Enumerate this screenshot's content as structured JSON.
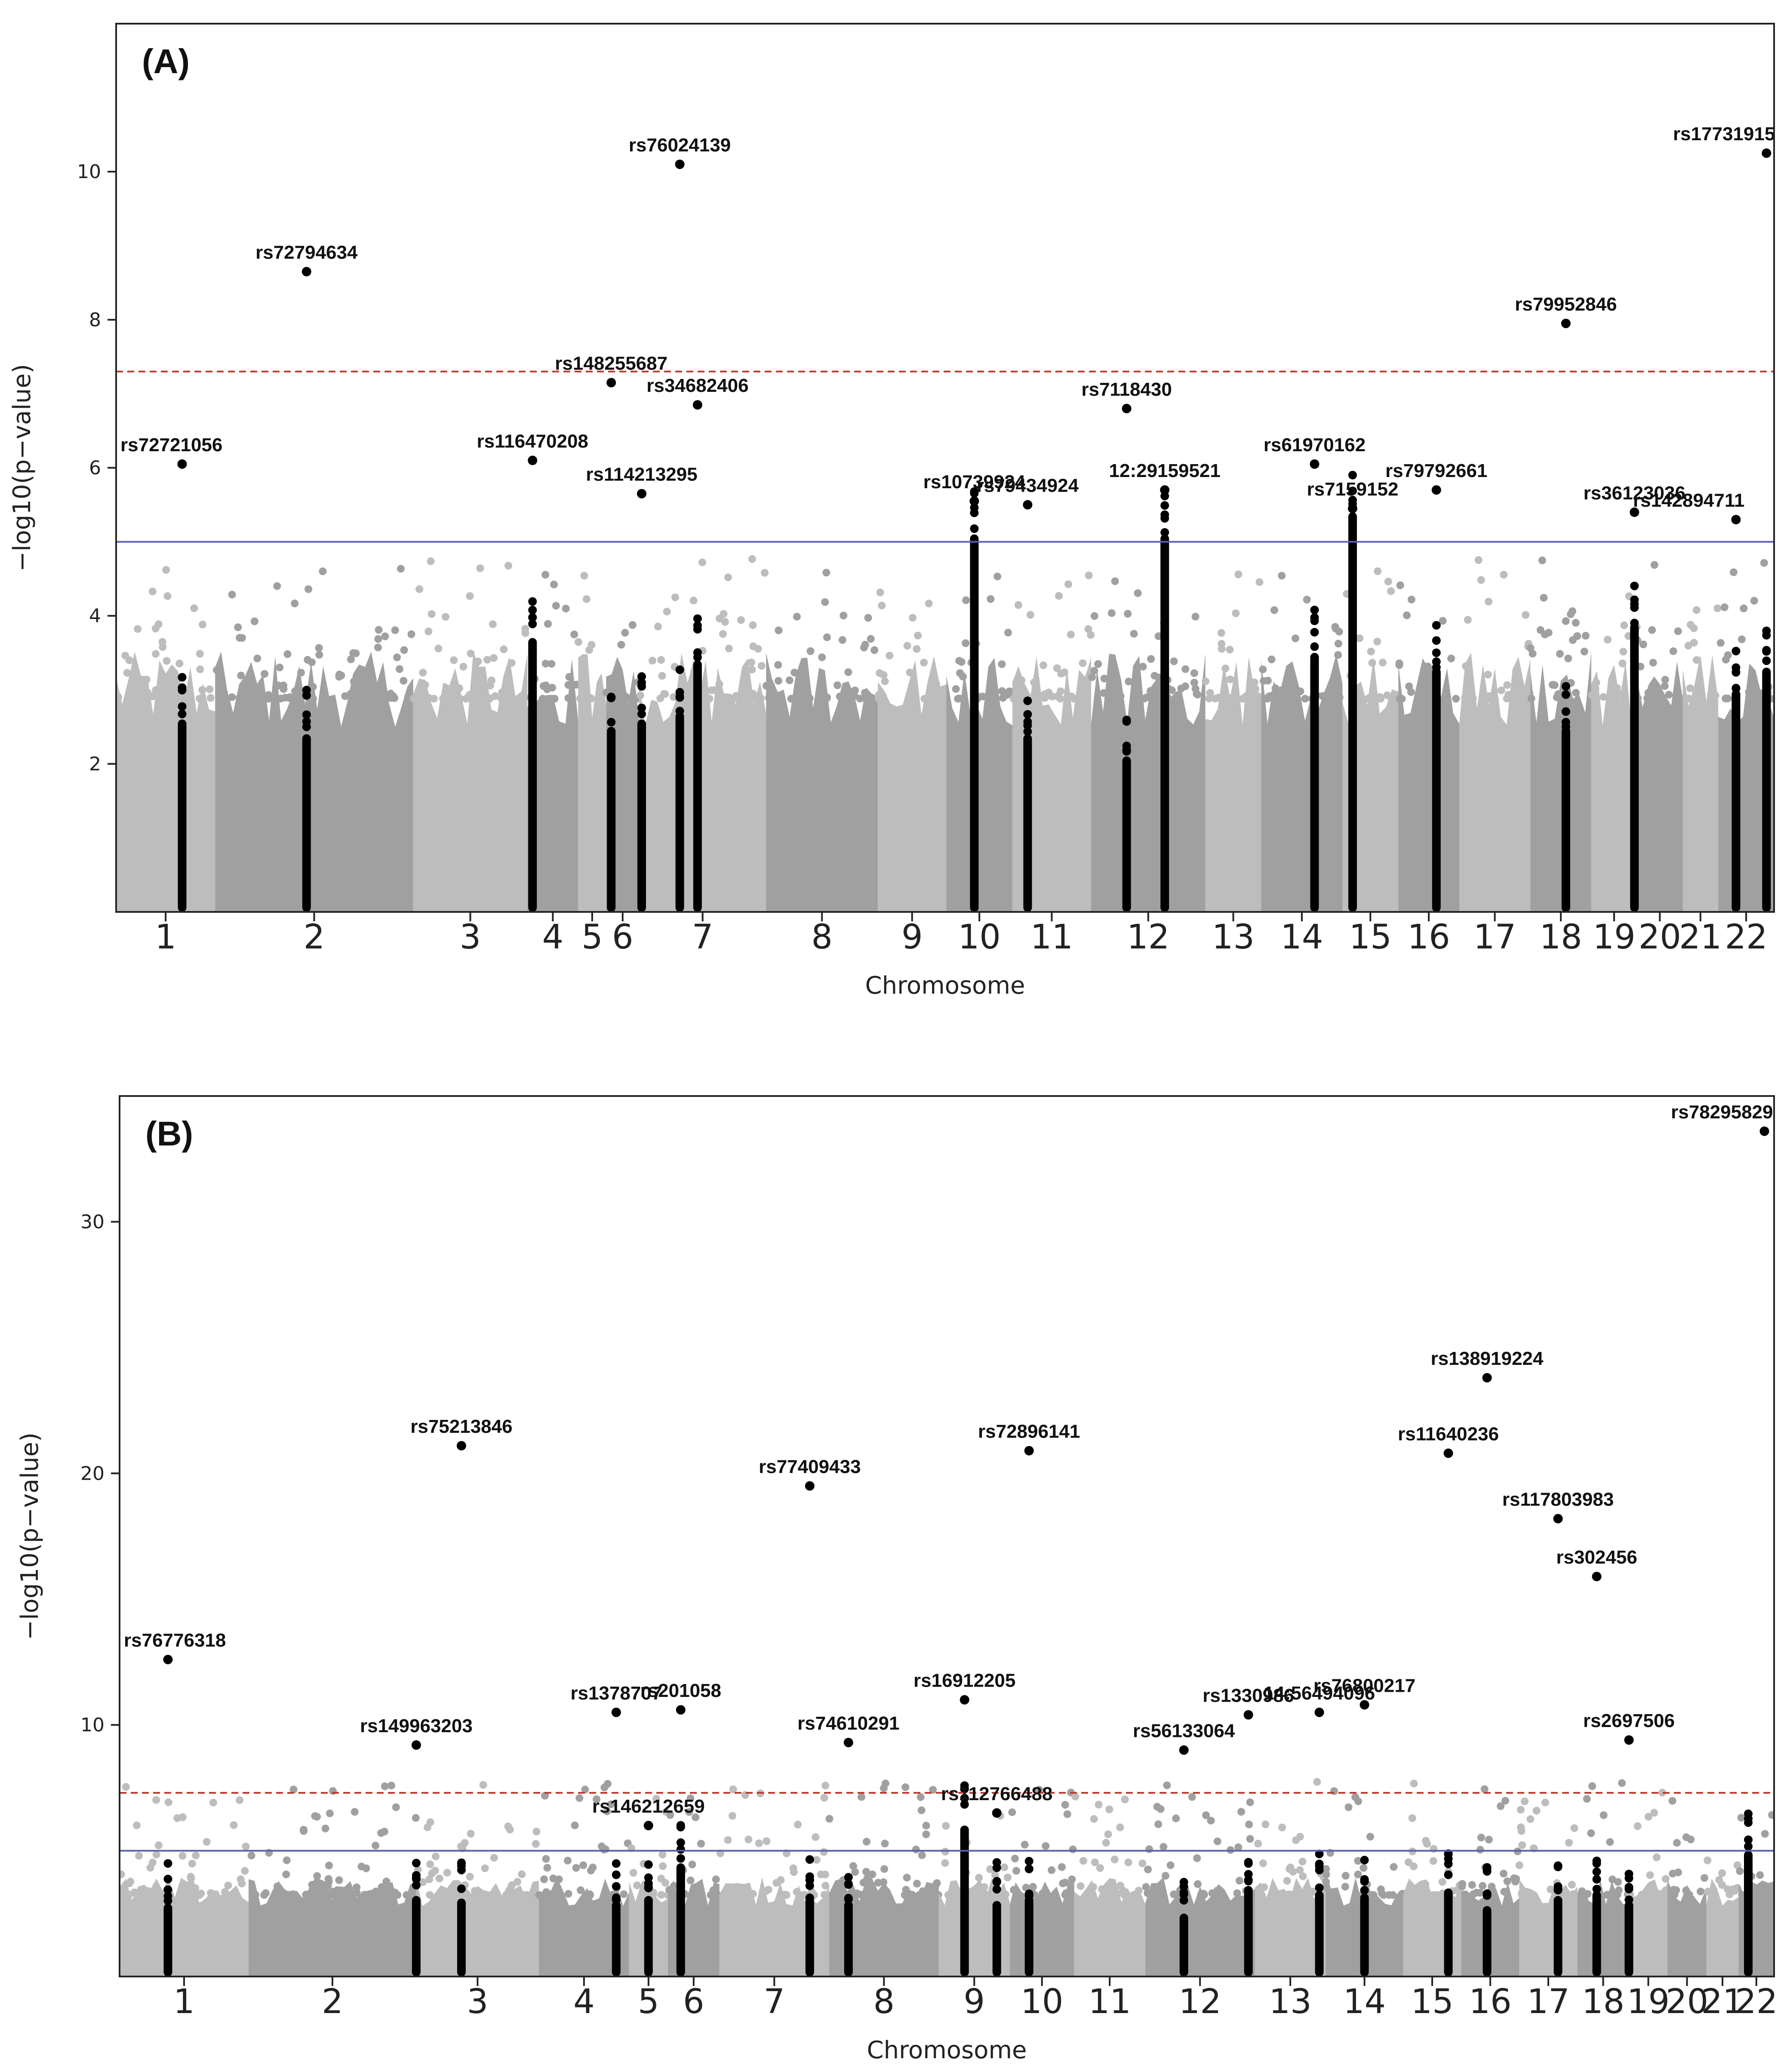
{
  "colors": {
    "light": "#bdbdbd",
    "dark": "#a0a0a0",
    "highlight": "#000000",
    "suggestive": "#5a5fb5",
    "significant": "#c0392b"
  },
  "chart_data": [
    {
      "type": "scatter",
      "title": "(A)",
      "xlabel": "Chromosome",
      "ylabel": "−log10(p−value)",
      "ylim": [
        0,
        12
      ],
      "yticks": [
        2,
        4,
        6,
        8,
        10
      ],
      "suggestive_line": 5.0,
      "genomewide_line": 7.3,
      "chromosomes": [
        {
          "label": "1",
          "start": 0.0,
          "end": 1.95
        },
        {
          "label": "2",
          "start": 1.95,
          "end": 5.85
        },
        {
          "label": "3",
          "start": 5.85,
          "end": 8.1
        },
        {
          "label": "4",
          "start": 8.1,
          "end": 9.1
        },
        {
          "label": "5",
          "start": 9.1,
          "end": 9.65
        },
        {
          "label": "6",
          "start": 9.65,
          "end": 10.3
        },
        {
          "label": "7",
          "start": 10.3,
          "end": 12.8
        },
        {
          "label": "8",
          "start": 12.8,
          "end": 15.0
        },
        {
          "label": "9",
          "start": 15.0,
          "end": 16.35
        },
        {
          "label": "10",
          "start": 16.35,
          "end": 17.65
        },
        {
          "label": "11",
          "start": 17.65,
          "end": 19.2
        },
        {
          "label": "12",
          "start": 19.2,
          "end": 21.45
        },
        {
          "label": "13",
          "start": 21.45,
          "end": 22.55
        },
        {
          "label": "14",
          "start": 22.55,
          "end": 24.15
        },
        {
          "label": "15",
          "start": 24.15,
          "end": 25.25
        },
        {
          "label": "16",
          "start": 25.25,
          "end": 26.45
        },
        {
          "label": "17",
          "start": 26.45,
          "end": 27.85
        },
        {
          "label": "18",
          "start": 27.85,
          "end": 29.05
        },
        {
          "label": "19",
          "start": 29.05,
          "end": 29.95
        },
        {
          "label": "20",
          "start": 29.95,
          "end": 30.85
        },
        {
          "label": "21",
          "start": 30.85,
          "end": 31.55
        },
        {
          "label": "22",
          "start": 31.55,
          "end": 32.65
        }
      ],
      "highlight_columns": [
        {
          "x": 1.3,
          "top": 2.6
        },
        {
          "x": 3.75,
          "top": 2.4
        },
        {
          "x": 8.2,
          "top": 3.7
        },
        {
          "x": 9.75,
          "top": 2.5
        },
        {
          "x": 10.35,
          "top": 2.6
        },
        {
          "x": 11.1,
          "top": 2.7
        },
        {
          "x": 11.45,
          "top": 3.4
        },
        {
          "x": 16.9,
          "top": 5.1
        },
        {
          "x": 17.95,
          "top": 2.4
        },
        {
          "x": 19.9,
          "top": 2.1
        },
        {
          "x": 20.65,
          "top": 5.1
        },
        {
          "x": 23.6,
          "top": 3.5
        },
        {
          "x": 24.35,
          "top": 5.4
        },
        {
          "x": 26.0,
          "top": 3.3
        },
        {
          "x": 28.55,
          "top": 2.5
        },
        {
          "x": 29.9,
          "top": 3.9
        },
        {
          "x": 31.9,
          "top": 3.0
        },
        {
          "x": 32.5,
          "top": 3.3
        }
      ],
      "annotations": [
        {
          "label": "rs72721056",
          "x": 1.3,
          "y": 6.05
        },
        {
          "label": "rs72794634",
          "x": 3.75,
          "y": 8.65
        },
        {
          "label": "rs116470208",
          "x": 8.2,
          "y": 6.1
        },
        {
          "label": "rs148255687",
          "x": 9.75,
          "y": 7.15
        },
        {
          "label": "rs114213295",
          "x": 10.35,
          "y": 5.65
        },
        {
          "label": "rs76024139",
          "x": 11.1,
          "y": 10.1
        },
        {
          "label": "rs34682406",
          "x": 11.45,
          "y": 6.85
        },
        {
          "label": "rs10739924",
          "x": 16.9,
          "y": 5.55
        },
        {
          "label": "rs79434924",
          "x": 17.95,
          "y": 5.5
        },
        {
          "label": "rs7118430",
          "x": 19.9,
          "y": 6.8
        },
        {
          "label": "12:29159521",
          "x": 20.65,
          "y": 5.7
        },
        {
          "label": "rs61970162",
          "x": 23.6,
          "y": 6.05
        },
        {
          "label": "rs7159152",
          "x": 24.35,
          "y": 5.45
        },
        {
          "label": "rs79792661",
          "x": 26.0,
          "y": 5.7
        },
        {
          "label": "rs79952846",
          "x": 28.55,
          "y": 7.95
        },
        {
          "label": "rs36123036",
          "x": 29.9,
          "y": 5.4
        },
        {
          "label": "rs142894711",
          "x": 31.9,
          "y": 5.3
        },
        {
          "label": "rs17731915",
          "x": 32.5,
          "y": 10.25
        }
      ]
    },
    {
      "type": "scatter",
      "title": "(B)",
      "xlabel": "Chromosome",
      "ylabel": "−log10(p−value)",
      "ylim": [
        0,
        35
      ],
      "yticks": [
        10,
        20,
        30
      ],
      "suggestive_line": 5.0,
      "genomewide_line": 7.3,
      "chromosomes": [
        {
          "label": "1",
          "start": 0.0,
          "end": 2.0
        },
        {
          "label": "2",
          "start": 2.0,
          "end": 4.6
        },
        {
          "label": "3",
          "start": 4.6,
          "end": 6.5
        },
        {
          "label": "4",
          "start": 6.5,
          "end": 7.9
        },
        {
          "label": "5",
          "start": 7.9,
          "end": 8.5
        },
        {
          "label": "6",
          "start": 8.5,
          "end": 9.3
        },
        {
          "label": "7",
          "start": 9.3,
          "end": 11.0
        },
        {
          "label": "8",
          "start": 11.0,
          "end": 12.7
        },
        {
          "label": "9",
          "start": 12.7,
          "end": 13.8
        },
        {
          "label": "10",
          "start": 13.8,
          "end": 14.8
        },
        {
          "label": "11",
          "start": 14.8,
          "end": 15.9
        },
        {
          "label": "12",
          "start": 15.9,
          "end": 17.6
        },
        {
          "label": "13",
          "start": 17.6,
          "end": 18.7
        },
        {
          "label": "14",
          "start": 18.7,
          "end": 19.9
        },
        {
          "label": "15",
          "start": 19.9,
          "end": 20.8
        },
        {
          "label": "16",
          "start": 20.8,
          "end": 21.7
        },
        {
          "label": "17",
          "start": 21.7,
          "end": 22.6
        },
        {
          "label": "18",
          "start": 22.6,
          "end": 23.4
        },
        {
          "label": "19",
          "start": 23.4,
          "end": 24.0
        },
        {
          "label": "20",
          "start": 24.0,
          "end": 24.6
        },
        {
          "label": "21",
          "start": 24.6,
          "end": 25.1
        },
        {
          "label": "22",
          "start": 25.1,
          "end": 25.65
        }
      ],
      "highlight_columns": [
        {
          "x": 0.75,
          "top": 2.9
        },
        {
          "x": 4.6,
          "top": 3.2
        },
        {
          "x": 5.3,
          "top": 3.1
        },
        {
          "x": 7.7,
          "top": 3.0
        },
        {
          "x": 8.2,
          "top": 3.2
        },
        {
          "x": 8.7,
          "top": 4.5
        },
        {
          "x": 10.7,
          "top": 3.3
        },
        {
          "x": 11.3,
          "top": 3.0
        },
        {
          "x": 13.1,
          "top": 6.0
        },
        {
          "x": 13.6,
          "top": 3.0
        },
        {
          "x": 14.1,
          "top": 3.2
        },
        {
          "x": 16.5,
          "top": 2.5
        },
        {
          "x": 17.5,
          "top": 3.6
        },
        {
          "x": 18.6,
          "top": 3.4
        },
        {
          "x": 19.3,
          "top": 3.3
        },
        {
          "x": 20.6,
          "top": 3.5
        },
        {
          "x": 21.2,
          "top": 2.8
        },
        {
          "x": 22.3,
          "top": 3.2
        },
        {
          "x": 22.9,
          "top": 3.4
        },
        {
          "x": 23.4,
          "top": 3.0
        },
        {
          "x": 25.25,
          "top": 5.0
        }
      ],
      "annotations": [
        {
          "label": "rs76776318",
          "x": 0.75,
          "y": 12.6
        },
        {
          "label": "rs149963203",
          "x": 4.6,
          "y": 9.2
        },
        {
          "label": "rs75213846",
          "x": 5.3,
          "y": 21.1
        },
        {
          "label": "rs1378707",
          "x": 7.7,
          "y": 10.5
        },
        {
          "label": "rs146212659",
          "x": 8.2,
          "y": 6.0
        },
        {
          "label": "rs201058",
          "x": 8.7,
          "y": 10.6
        },
        {
          "label": "rs77409433",
          "x": 10.7,
          "y": 19.5
        },
        {
          "label": "rs74610291",
          "x": 11.3,
          "y": 9.3
        },
        {
          "label": "rs16912205",
          "x": 13.1,
          "y": 11.0
        },
        {
          "label": "rs112766488",
          "x": 13.6,
          "y": 6.5
        },
        {
          "label": "rs72896141",
          "x": 14.1,
          "y": 20.9
        },
        {
          "label": "rs56133064",
          "x": 16.5,
          "y": 9.0
        },
        {
          "label": "rs1330986",
          "x": 17.5,
          "y": 10.4
        },
        {
          "label": "14:56494096",
          "x": 18.6,
          "y": 10.5
        },
        {
          "label": "rs76800217",
          "x": 19.3,
          "y": 10.8
        },
        {
          "label": "rs11640236",
          "x": 20.6,
          "y": 20.8
        },
        {
          "label": "rs138919224",
          "x": 21.2,
          "y": 23.8
        },
        {
          "label": "rs117803983",
          "x": 22.3,
          "y": 18.2
        },
        {
          "label": "rs302456",
          "x": 22.9,
          "y": 15.9
        },
        {
          "label": "rs2697506",
          "x": 23.4,
          "y": 9.4
        },
        {
          "label": "rs78295829",
          "x": 25.5,
          "y": 33.6
        }
      ]
    }
  ]
}
